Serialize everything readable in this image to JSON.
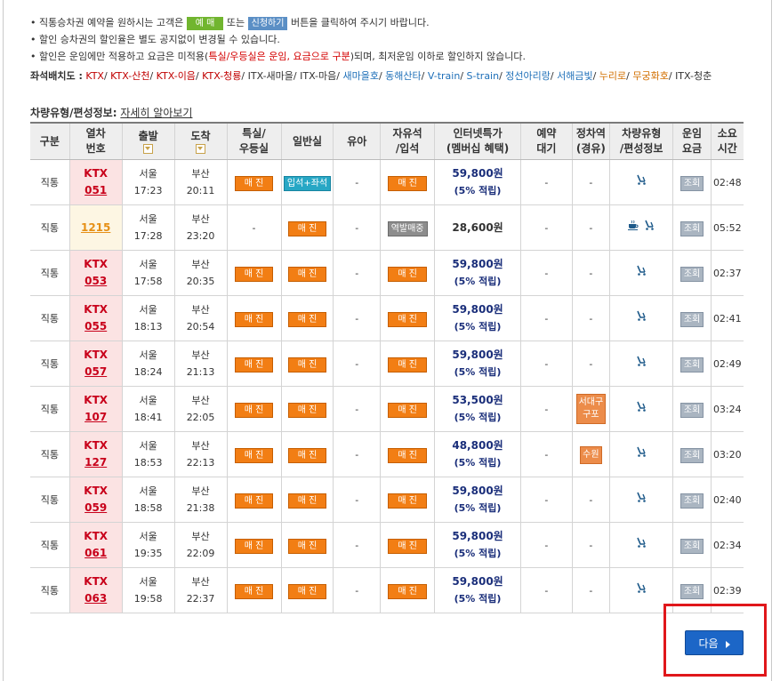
{
  "notice": {
    "line1_pre": "직통승차권 예약을 원하시는 고객은",
    "btn_reserve": "예 매",
    "line1_mid": "또는",
    "btn_apply": "신청하기",
    "line1_post": "버튼을 클릭하여 주시기 바랍니다.",
    "line2": "할인 승차권의 할인율은 별도 공지없이 변경될 수 있습니다.",
    "line3_pre": "할인은 운임에만 적용하고 요금은 미적용(",
    "line3_red": "특실/우등실은 운임, 요금으로 구분",
    "line3_post": ")되며, 최저운임 이하로 할인하지 않습니다."
  },
  "seat_map": {
    "label": "좌석배치도",
    "items": [
      {
        "text": "KTX",
        "color": "red"
      },
      {
        "text": "KTX-산천",
        "color": "red"
      },
      {
        "text": "KTX-이음",
        "color": "red"
      },
      {
        "text": "KTX-청룡",
        "color": "red"
      },
      {
        "text": "ITX-새마을",
        "color": "dark"
      },
      {
        "text": "ITX-마음",
        "color": "dark"
      },
      {
        "text": "새마을호",
        "color": "blue"
      },
      {
        "text": "동해산타",
        "color": "blue"
      },
      {
        "text": "V-train",
        "color": "blue"
      },
      {
        "text": "S-train",
        "color": "blue"
      },
      {
        "text": "정선아리랑",
        "color": "blue"
      },
      {
        "text": "서해금빛",
        "color": "blue"
      },
      {
        "text": "누리로",
        "color": "orange"
      },
      {
        "text": "무궁화호",
        "color": "orange"
      },
      {
        "text": "ITX-청춘",
        "color": "dark"
      }
    ]
  },
  "vehicle_info": {
    "label": "차량유형/편성정보:",
    "link": "자세히 알아보기"
  },
  "columns": {
    "type": "구분",
    "train_no_1": "열차",
    "train_no_2": "번호",
    "depart": "출발",
    "arrive": "도착",
    "special_1": "특실/",
    "special_2": "우등실",
    "general": "일반실",
    "infant": "유아",
    "free_1": "자유석",
    "free_2": "/입석",
    "internet_1": "인터넷특가",
    "internet_2": "(멤버십 혜택)",
    "waitlist_1": "예약",
    "waitlist_2": "대기",
    "stops_1": "정차역",
    "stops_2": "(경유)",
    "vehicle_1": "차량유형",
    "vehicle_2": "/편성정보",
    "fare_1": "운임",
    "fare_2": "요금",
    "time_1": "소요",
    "time_2": "시간"
  },
  "rows": [
    {
      "type": "직통",
      "kind": "KTX",
      "no": "051",
      "dep_st": "서울",
      "dep": "17:23",
      "arr_st": "부산",
      "arr": "20:11",
      "special": "매 진",
      "general": "입석+좌석",
      "general_style": "teal",
      "infant": "-",
      "free": "매 진",
      "free_style": "orange",
      "price": "59,800원",
      "pct": "(5% 적립)",
      "wait": "-",
      "via": "-",
      "icons": "car",
      "fare": "조회",
      "time": "02:48"
    },
    {
      "type": "직통",
      "kind": "",
      "no": "1215",
      "dep_st": "서울",
      "dep": "17:28",
      "arr_st": "부산",
      "arr": "23:20",
      "special": "-",
      "general": "매 진",
      "general_style": "orange",
      "infant": "-",
      "free": "역발매중",
      "free_style": "grey",
      "price": "28,600원",
      "pct": "",
      "wait": "-",
      "via": "-",
      "icons": "cafe-car",
      "fare": "조회",
      "time": "05:52"
    },
    {
      "type": "직통",
      "kind": "KTX",
      "no": "053",
      "dep_st": "서울",
      "dep": "17:58",
      "arr_st": "부산",
      "arr": "20:35",
      "special": "매 진",
      "general": "매 진",
      "general_style": "orange",
      "infant": "-",
      "free": "매 진",
      "free_style": "orange",
      "price": "59,800원",
      "pct": "(5% 적립)",
      "wait": "-",
      "via": "-",
      "icons": "car",
      "fare": "조회",
      "time": "02:37"
    },
    {
      "type": "직통",
      "kind": "KTX",
      "no": "055",
      "dep_st": "서울",
      "dep": "18:13",
      "arr_st": "부산",
      "arr": "20:54",
      "special": "매 진",
      "general": "매 진",
      "general_style": "orange",
      "infant": "-",
      "free": "매 진",
      "free_style": "orange",
      "price": "59,800원",
      "pct": "(5% 적립)",
      "wait": "-",
      "via": "-",
      "icons": "car",
      "fare": "조회",
      "time": "02:41"
    },
    {
      "type": "직통",
      "kind": "KTX",
      "no": "057",
      "dep_st": "서울",
      "dep": "18:24",
      "arr_st": "부산",
      "arr": "21:13",
      "special": "매 진",
      "general": "매 진",
      "general_style": "orange",
      "infant": "-",
      "free": "매 진",
      "free_style": "orange",
      "price": "59,800원",
      "pct": "(5% 적립)",
      "wait": "-",
      "via": "-",
      "icons": "car",
      "fare": "조회",
      "time": "02:49"
    },
    {
      "type": "직통",
      "kind": "KTX",
      "no": "107",
      "dep_st": "서울",
      "dep": "18:41",
      "arr_st": "부산",
      "arr": "22:05",
      "special": "매 진",
      "general": "매 진",
      "general_style": "orange",
      "infant": "-",
      "free": "매 진",
      "free_style": "orange",
      "price": "53,500원",
      "pct": "(5% 적립)",
      "wait": "-",
      "via": "서대구\n구포",
      "icons": "car",
      "fare": "조회",
      "time": "03:24"
    },
    {
      "type": "직통",
      "kind": "KTX",
      "no": "127",
      "dep_st": "서울",
      "dep": "18:53",
      "arr_st": "부산",
      "arr": "22:13",
      "special": "매 진",
      "general": "매 진",
      "general_style": "orange",
      "infant": "-",
      "free": "매 진",
      "free_style": "orange",
      "price": "48,800원",
      "pct": "(5% 적립)",
      "wait": "-",
      "via": "수원",
      "icons": "car",
      "fare": "조회",
      "time": "03:20"
    },
    {
      "type": "직통",
      "kind": "KTX",
      "no": "059",
      "dep_st": "서울",
      "dep": "18:58",
      "arr_st": "부산",
      "arr": "21:38",
      "special": "매 진",
      "general": "매 진",
      "general_style": "orange",
      "infant": "-",
      "free": "매 진",
      "free_style": "orange",
      "price": "59,800원",
      "pct": "(5% 적립)",
      "wait": "-",
      "via": "-",
      "icons": "car",
      "fare": "조회",
      "time": "02:40"
    },
    {
      "type": "직통",
      "kind": "KTX",
      "no": "061",
      "dep_st": "서울",
      "dep": "19:35",
      "arr_st": "부산",
      "arr": "22:09",
      "special": "매 진",
      "general": "매 진",
      "general_style": "orange",
      "infant": "-",
      "free": "매 진",
      "free_style": "orange",
      "price": "59,800원",
      "pct": "(5% 적립)",
      "wait": "-",
      "via": "-",
      "icons": "car",
      "fare": "조회",
      "time": "02:34"
    },
    {
      "type": "직통",
      "kind": "KTX",
      "no": "063",
      "dep_st": "서울",
      "dep": "19:58",
      "arr_st": "부산",
      "arr": "22:37",
      "special": "매 진",
      "general": "매 진",
      "general_style": "orange",
      "infant": "-",
      "free": "매 진",
      "free_style": "orange",
      "price": "59,800원",
      "pct": "(5% 적립)",
      "wait": "-",
      "via": "-",
      "icons": "car",
      "fare": "조회",
      "time": "02:39"
    }
  ],
  "next_button": {
    "label": "다음"
  },
  "colors": {
    "ktx_red": "#c8001a",
    "soldout_orange": "#f27e14",
    "price_navy": "#1a2e7a",
    "next_blue": "#1c66c7",
    "highlight_red": "#e0171b"
  }
}
